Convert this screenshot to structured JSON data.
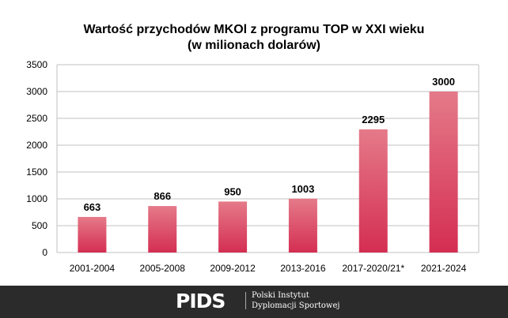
{
  "chart_data": {
    "type": "bar",
    "title": "Wartość przychodów MKOl z programu TOP w XXI wieku",
    "subtitle": "(w milionach dolarów)",
    "categories": [
      "2001-2004",
      "2005-2008",
      "2009-2012",
      "2013-2016",
      "2017-2020/21*",
      "2021-2024"
    ],
    "values": [
      663,
      866,
      950,
      1003,
      2295,
      3000
    ],
    "ylim": [
      0,
      3500
    ],
    "yticks": [
      0,
      500,
      1000,
      1500,
      2000,
      2500,
      3000,
      3500
    ],
    "grid": true,
    "xlabel": "",
    "ylabel": "",
    "colors": {
      "bar_top": "#e57a89",
      "bar_bottom": "#d42e52",
      "grid": "#c0c0c0"
    }
  },
  "footer": {
    "logo": "PIDS",
    "line1": "Polski Instytut",
    "line2": "Dyplomacji Sportowej"
  }
}
